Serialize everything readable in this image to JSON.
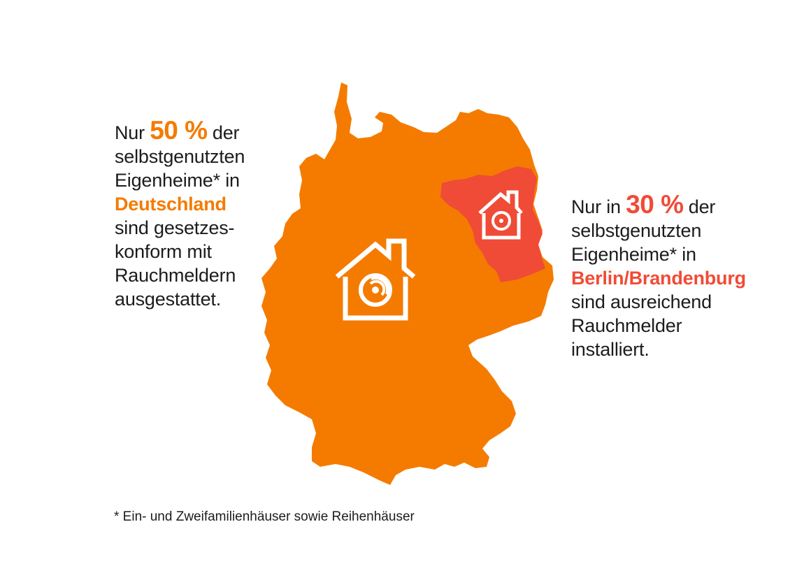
{
  "left_text": {
    "prefix": "Nur",
    "percent": "50 %",
    "suffix": "der",
    "line2": "selbstgenutzten",
    "line3": "Eigenheime* in",
    "region": "Deutschland",
    "line5": "sind gesetzes-",
    "line6": "konform mit",
    "line7": "Rauchmeldern",
    "line8": "ausgestattet."
  },
  "right_text": {
    "prefix": "Nur in",
    "percent": "30 %",
    "suffix": "der",
    "line2": "selbstgenutzten",
    "line3": "Eigenheime* in",
    "region": "Berlin/Brandenburg",
    "line5": "sind ausreichend",
    "line6": "Rauchmelder",
    "line7": "installiert."
  },
  "footnote": "* Ein- und Zweifamilienhäuser sowie Reihenhäuser",
  "map": {
    "country_color": "#f47b00",
    "highlight_region_color": "#f04b36",
    "icon": "house-smoke-detector-icon"
  }
}
